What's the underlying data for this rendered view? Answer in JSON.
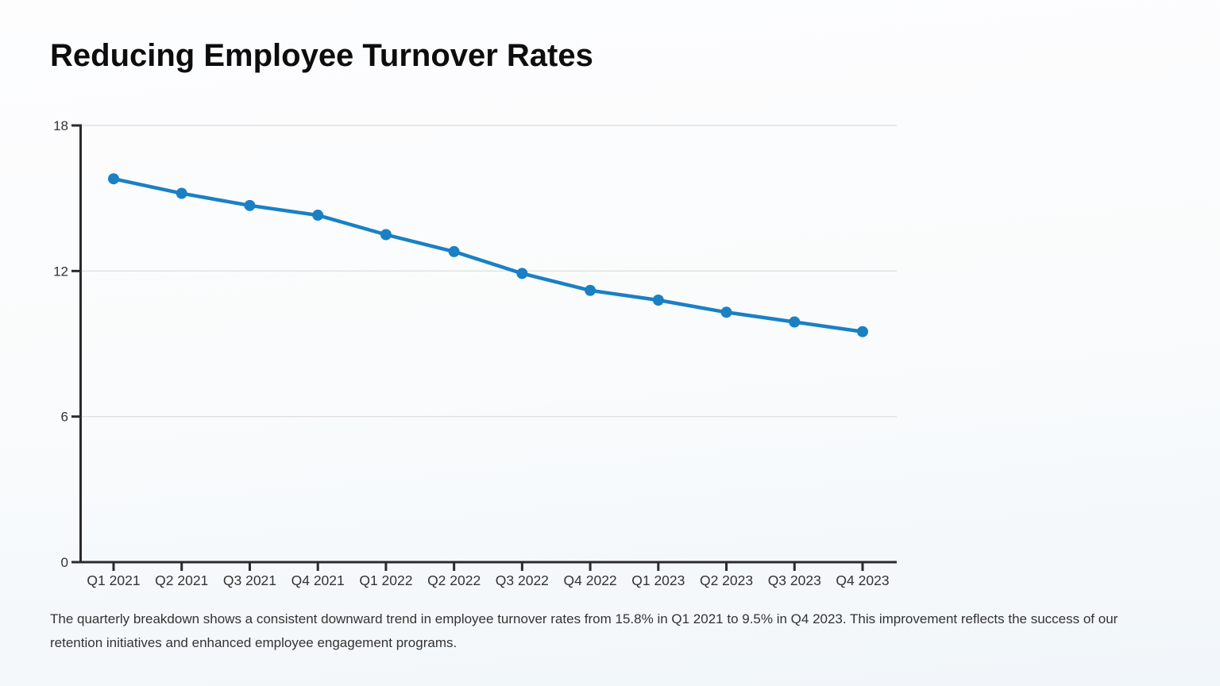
{
  "page": {
    "title": "Reducing Employee Turnover Rates",
    "caption": "The quarterly breakdown shows a consistent downward trend in employee turnover rates from 15.8% in Q1 2021 to 9.5% in Q4 2023. This improvement reflects the success of our retention initiatives and enhanced employee engagement programs."
  },
  "chart_data": {
    "type": "line",
    "title": "Reducing Employee Turnover Rates",
    "categories": [
      "Q1 2021",
      "Q2 2021",
      "Q3 2021",
      "Q4 2021",
      "Q1 2022",
      "Q2 2022",
      "Q3 2022",
      "Q4 2022",
      "Q1 2023",
      "Q2 2023",
      "Q3 2023",
      "Q4 2023"
    ],
    "values": [
      15.8,
      15.2,
      14.7,
      14.3,
      13.5,
      12.8,
      11.9,
      11.2,
      10.8,
      10.3,
      9.9,
      9.5
    ],
    "xlabel": "",
    "ylabel": "",
    "ylim": [
      0,
      18
    ],
    "yticks": [
      0,
      6,
      12,
      18
    ],
    "grid": true,
    "legend": "none",
    "marker": "circle",
    "colors": {
      "line": "#1a80c4",
      "marker": "#1a80c4",
      "axis": "#2b2b2b",
      "grid": "#dcdcdc",
      "tick_label": "#333333"
    }
  }
}
